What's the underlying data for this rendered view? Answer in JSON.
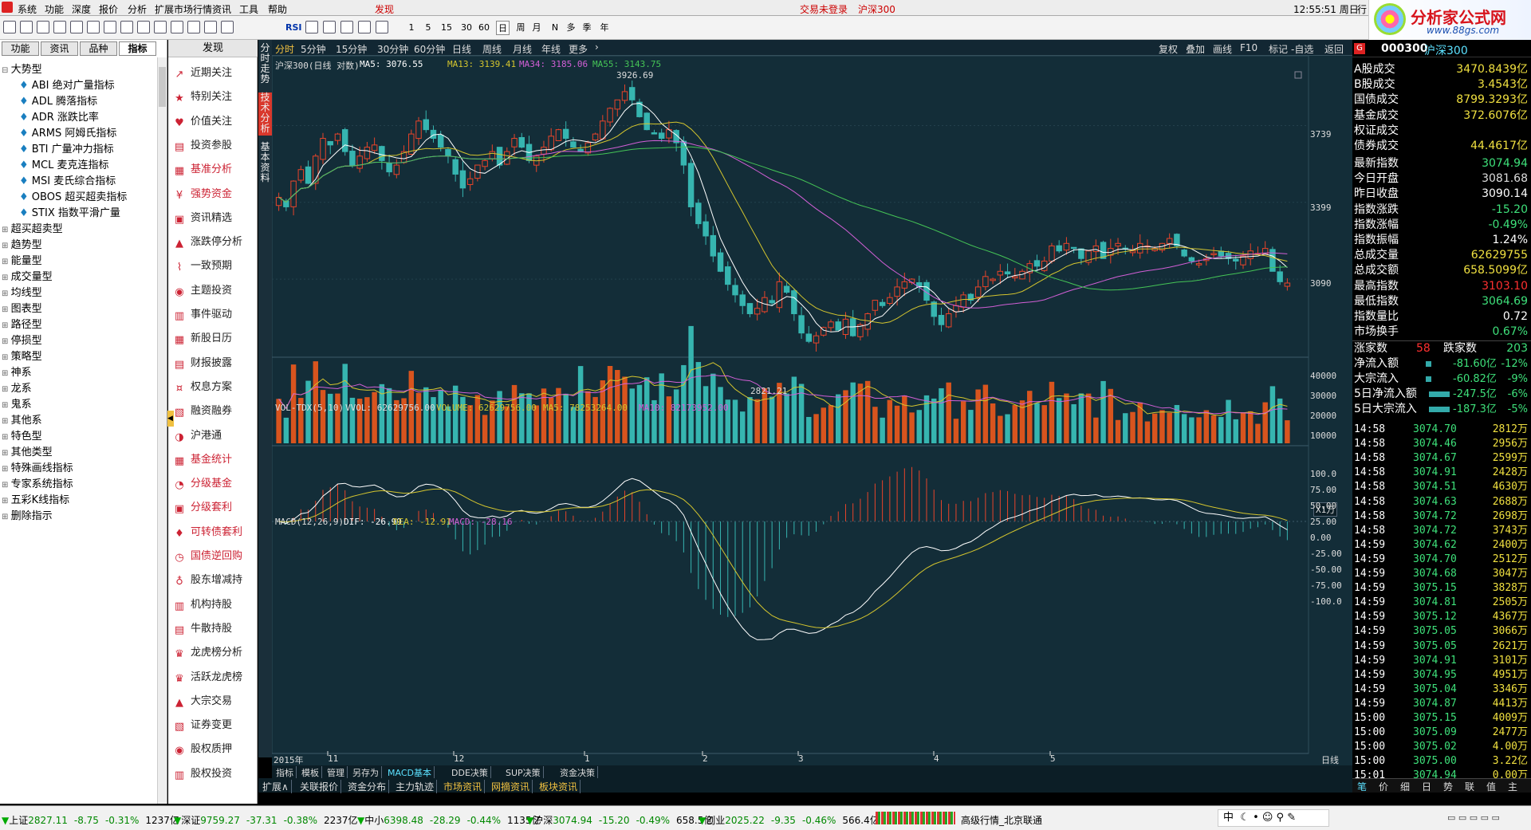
{
  "menu": {
    "items": [
      "系统",
      "功能",
      "深度",
      "报价",
      "分析",
      "扩展市场行情",
      "资讯",
      "工具",
      "帮助"
    ],
    "discover": "发现",
    "login": "交易未登录",
    "index_name": "沪深300",
    "clock": "12:55:51 周日",
    "trade": "行"
  },
  "logo": {
    "title": "分析家公式网",
    "url": "www.88gs.com"
  },
  "toolbar": {
    "periods": [
      "1",
      "5",
      "15",
      "30",
      "60",
      "日",
      "周",
      "月",
      "N",
      "多",
      "季",
      "年"
    ],
    "rsi": "RSI"
  },
  "left": {
    "tabs": [
      "功能",
      "资讯",
      "品种",
      "指标"
    ],
    "tree": [
      {
        "label": "大势型",
        "children": [
          "ABI 绝对广量指标",
          "ADL 腾落指标",
          "ADR 涨跌比率",
          "ARMS 阿姆氏指标",
          "BTI 广量冲力指标",
          "MCL 麦克连指标",
          "MSI 麦氏综合指标",
          "OBOS 超买超卖指标",
          "STIX 指数平滑广量"
        ]
      },
      {
        "label": "超买超卖型"
      },
      {
        "label": "趋势型"
      },
      {
        "label": "能量型"
      },
      {
        "label": "成交量型"
      },
      {
        "label": "均线型"
      },
      {
        "label": "图表型"
      },
      {
        "label": "路径型"
      },
      {
        "label": "停损型"
      },
      {
        "label": "策略型"
      },
      {
        "label": "神系"
      },
      {
        "label": "龙系"
      },
      {
        "label": "鬼系"
      },
      {
        "label": "其他系"
      },
      {
        "label": "特色型"
      },
      {
        "label": "其他类型"
      },
      {
        "label": "特殊画线指标"
      },
      {
        "label": "专家系统指标"
      },
      {
        "label": "五彩K线指标"
      },
      {
        "label": "删除指示"
      }
    ]
  },
  "discover": {
    "title": "发现",
    "items": [
      "近期关注",
      "特别关注",
      "价值关注",
      "投资参股",
      "基准分析",
      "强势资金",
      "资讯精选",
      "涨跌停分析",
      "一致预期",
      "主题投资",
      "事件驱动",
      "新股日历",
      "财报披露",
      "权息方案",
      "融资融券",
      "沪港通",
      "基金统计",
      "分级基金",
      "分级套利",
      "可转债套利",
      "国债逆回购",
      "股东增减持",
      "机构持股",
      "牛散持股",
      "龙虎榜分析",
      "活跃龙虎榜",
      "大宗交易",
      "证券变更",
      "股权质押",
      "股权投资"
    ]
  },
  "vtabs": [
    "分时走势",
    "技术分析",
    "基本资料"
  ],
  "chart": {
    "period_tabs": [
      "分时",
      "5分钟",
      "15分钟",
      "30分钟",
      "60分钟",
      "日线",
      "周线",
      "月线",
      "年线",
      "更多"
    ],
    "right_buttons": [
      "复权",
      "叠加",
      "画线",
      "F10",
      "标记",
      "-自选",
      "返回"
    ],
    "main_title": "沪深300(日线 对数)",
    "ma5": "MA5: 3076.55",
    "ma13": "MA13: 3139.41",
    "ma34": "MA34: 3185.06",
    "ma55": "MA55: 3143.75",
    "price_axis": [
      "3739",
      "3399",
      "3090"
    ],
    "high_label": "3926.69",
    "low_label": "2821.21",
    "vol_title": "VOL-TDX(5,10)",
    "vvol": "VVOL: 62629756.00",
    "volume": "VOLUME: 62629756.00",
    "vma5": "MA5: 78253264.00",
    "vma10": "MA10: 82173952.00",
    "vol_axis": [
      "40000",
      "30000",
      "20000",
      "10000"
    ],
    "vol_unit": "X1万",
    "macd_title": "MACD(12,26,9)",
    "dif": "DIF: -26.99",
    "dea": "DEA: -12.91",
    "macd": "MACD: -28.16",
    "macd_axis": [
      "100.0",
      "75.00",
      "50.00",
      "25.00",
      "0.00",
      "-25.00",
      "-50.00",
      "-75.00",
      "-100.0"
    ],
    "date_axis": [
      "2015年",
      "11",
      "12",
      "1",
      "2",
      "3",
      "4",
      "5"
    ],
    "date_mode": "日线",
    "bottom_tabs": [
      "指标",
      "模板",
      "管理",
      "另存为",
      "MACD基本",
      "DDE决策",
      "SUP决策",
      "资金决策"
    ],
    "bottom_tabs2": [
      "扩展∧",
      "关联报价",
      "资金分布",
      "主力轨迹",
      "市场资讯",
      "网摘资讯",
      "板块资讯"
    ]
  },
  "right": {
    "code": "000300",
    "name": "沪深300",
    "stats": [
      [
        "A股成交",
        "3470.8439亿"
      ],
      [
        "B股成交",
        "3.4543亿"
      ],
      [
        "国债成交",
        "8799.3293亿"
      ],
      [
        "基金成交",
        "372.6076亿"
      ],
      [
        "权证成交",
        ""
      ],
      [
        "债券成交",
        "44.4617亿"
      ]
    ],
    "quotes": [
      [
        "最新指数",
        "3074.94"
      ],
      [
        "今日开盘",
        "3081.68"
      ],
      [
        "昨日收盘",
        "3090.14"
      ],
      [
        "指数涨跌",
        "-15.20"
      ],
      [
        "指数涨幅",
        "-0.49%"
      ],
      [
        "指数振幅",
        "1.24%"
      ],
      [
        "总成交量",
        "62629755"
      ],
      [
        "总成交额",
        "658.5099亿"
      ],
      [
        "最高指数",
        "3103.10"
      ],
      [
        "最低指数",
        "3064.69"
      ],
      [
        "指数量比",
        "0.72"
      ],
      [
        "市场换手",
        "0.67%"
      ]
    ],
    "updown": {
      "up_label": "涨家数",
      "up": "58",
      "down_label": "跌家数",
      "down": "203"
    },
    "flows": [
      [
        "净流入额",
        "-81.60亿",
        "-12%"
      ],
      [
        "大宗流入",
        "-60.82亿",
        "-9%"
      ],
      [
        "5日净流入额",
        "-247.5亿",
        "-6%"
      ],
      [
        "5日大宗流入",
        "-187.3亿",
        "-5%"
      ]
    ],
    "ticks": [
      [
        "14:58",
        "3074.70",
        "2812万"
      ],
      [
        "14:58",
        "3074.46",
        "2956万"
      ],
      [
        "14:58",
        "3074.67",
        "2599万"
      ],
      [
        "14:58",
        "3074.91",
        "2428万"
      ],
      [
        "14:58",
        "3074.51",
        "4630万"
      ],
      [
        "14:58",
        "3074.63",
        "2688万"
      ],
      [
        "14:58",
        "3074.72",
        "2698万"
      ],
      [
        "14:58",
        "3074.72",
        "3743万"
      ],
      [
        "14:59",
        "3074.62",
        "2400万"
      ],
      [
        "14:59",
        "3074.70",
        "2512万"
      ],
      [
        "14:59",
        "3074.68",
        "3047万"
      ],
      [
        "14:59",
        "3075.15",
        "3828万"
      ],
      [
        "14:59",
        "3074.81",
        "2505万"
      ],
      [
        "14:59",
        "3075.12",
        "4367万"
      ],
      [
        "14:59",
        "3075.05",
        "3066万"
      ],
      [
        "14:59",
        "3075.05",
        "2621万"
      ],
      [
        "14:59",
        "3074.91",
        "3101万"
      ],
      [
        "14:59",
        "3074.95",
        "4951万"
      ],
      [
        "14:59",
        "3075.04",
        "3346万"
      ],
      [
        "14:59",
        "3074.87",
        "4413万"
      ],
      [
        "15:00",
        "3075.15",
        "4009万"
      ],
      [
        "15:00",
        "3075.09",
        "2477万"
      ],
      [
        "15:00",
        "3075.02",
        "4.00万"
      ],
      [
        "15:00",
        "3075.00",
        "3.22亿"
      ],
      [
        "15:01",
        "3074.94",
        "0.00万"
      ]
    ],
    "bottom_tabs": [
      "笔",
      "价",
      "细",
      "日",
      "势",
      "联",
      "值",
      "主"
    ]
  },
  "status": {
    "items": [
      [
        "上证",
        "2827.11",
        "-8.75",
        "-0.31%",
        "1237亿"
      ],
      [
        "深证",
        "9759.27",
        "-37.31",
        "-0.38%",
        "2237亿"
      ],
      [
        "中小",
        "6398.48",
        "-28.29",
        "-0.44%",
        "1135亿"
      ],
      [
        "沪深",
        "3074.94",
        "-15.20",
        "-0.49%",
        "658.5亿"
      ],
      [
        "创业",
        "2025.22",
        "-9.35",
        "-0.46%",
        "566.4亿"
      ]
    ],
    "server": "高级行情_北京联通",
    "ime": "中"
  },
  "chart_data": {
    "type": "candlestick",
    "title": "沪深300(日线 对数)",
    "x_labels": [
      "2015年",
      "11",
      "12",
      "1",
      "2",
      "3",
      "4",
      "5"
    ],
    "y_ticks": [
      3739,
      3399,
      3090
    ],
    "high": 3926.69,
    "low": 2821.21,
    "close": [
      3420,
      3380,
      3490,
      3540,
      3480,
      3600,
      3680,
      3650,
      3700,
      3620,
      3560,
      3600,
      3640,
      3650,
      3580,
      3530,
      3560,
      3620,
      3700,
      3760,
      3720,
      3680,
      3640,
      3600,
      3520,
      3460,
      3500,
      3560,
      3580,
      3620,
      3560,
      3620,
      3680,
      3640,
      3580,
      3600,
      3640,
      3690,
      3720,
      3680,
      3640,
      3620,
      3660,
      3700,
      3760,
      3820,
      3860,
      3900,
      3860,
      3780,
      3720,
      3700,
      3680,
      3720,
      3660,
      3560,
      3380,
      3310,
      3260,
      3180,
      3120,
      3070,
      3030,
      2990,
      2960,
      2980,
      3020,
      3000,
      3080,
      3040,
      2960,
      2890,
      2860,
      2880,
      2910,
      2930,
      2900,
      2940,
      2880,
      2920,
      2960,
      3010,
      2990,
      3020,
      3060,
      3080,
      3090,
      3060,
      3010,
      2950,
      2920,
      2960,
      2990,
      3030,
      3010,
      3060,
      3100,
      3090,
      3120,
      3110,
      3100,
      3120,
      3150,
      3140,
      3160,
      3220,
      3200,
      3230,
      3210,
      3170,
      3200,
      3220,
      3170,
      3210,
      3230,
      3210,
      3200,
      3230,
      3220,
      3210,
      3230,
      3250,
      3220,
      3180,
      3160,
      3150,
      3170,
      3190,
      3180,
      3170,
      3160,
      3180,
      3200,
      3190,
      3210,
      3120,
      3080,
      3075
    ],
    "volume_unit": "X1万",
    "macd": {
      "dif": -26.99,
      "dea": -12.91,
      "macd": -28.16
    }
  }
}
